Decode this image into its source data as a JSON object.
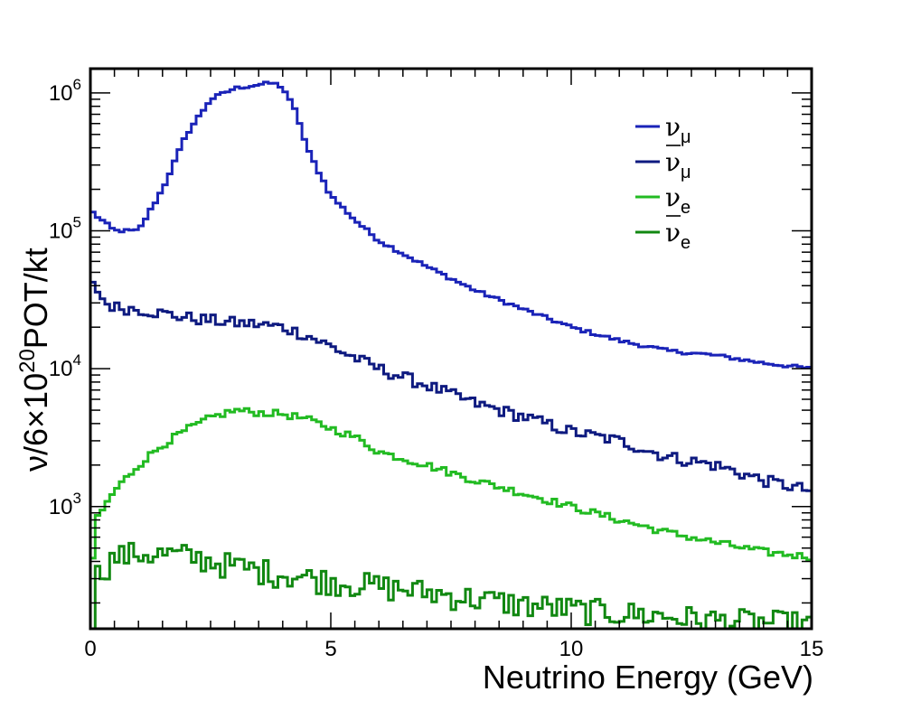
{
  "chart_data": {
    "type": "line",
    "style": "step histogram",
    "xlabel": "Neutrino Energy (GeV)",
    "ylabel": "ν/6×10²⁰POT/kt",
    "ylabel_parts": {
      "pre": "ν/6×10",
      "sup": "20",
      "post": "POT/kt"
    },
    "xlim": [
      0,
      15
    ],
    "ylim": [
      130,
      1500000
    ],
    "yscale": "log",
    "grid": false,
    "legend_position": "top-right",
    "x_ticks": [
      {
        "value": 0,
        "label": "0"
      },
      {
        "value": 5,
        "label": "5"
      },
      {
        "value": 10,
        "label": "10"
      },
      {
        "value": 15,
        "label": "15"
      }
    ],
    "y_ticks": [
      {
        "value": 1000,
        "base": "10",
        "exp": "3"
      },
      {
        "value": 10000,
        "base": "10",
        "exp": "4"
      },
      {
        "value": 100000,
        "base": "10",
        "exp": "5"
      },
      {
        "value": 1000000,
        "base": "10",
        "exp": "6"
      }
    ],
    "bin_width": 0.1,
    "series": [
      {
        "name": "ν_μ",
        "label_base": "ν",
        "label_sub": "μ",
        "bar": false,
        "color": "#1a23b8",
        "points": [
          [
            0,
            140000
          ],
          [
            0.5,
            100000
          ],
          [
            1,
            100000
          ],
          [
            1.5,
            200000
          ],
          [
            2,
            500000
          ],
          [
            2.5,
            900000
          ],
          [
            3,
            1080000
          ],
          [
            3.5,
            1150000
          ],
          [
            3.8,
            1180000
          ],
          [
            4,
            1100000
          ],
          [
            4.3,
            700000
          ],
          [
            4.5,
            400000
          ],
          [
            5,
            180000
          ],
          [
            5.5,
            120000
          ],
          [
            6,
            85000
          ],
          [
            7,
            55000
          ],
          [
            8,
            37000
          ],
          [
            9,
            27000
          ],
          [
            10,
            20000
          ],
          [
            11,
            16000
          ],
          [
            12,
            13500
          ],
          [
            13,
            12500
          ],
          [
            14,
            11000
          ],
          [
            15,
            10000
          ]
        ]
      },
      {
        "name": "ν̄_μ",
        "label_base": "ν",
        "label_sub": "μ",
        "bar": true,
        "color": "#0e1a80",
        "points": [
          [
            0.1,
            40000
          ],
          [
            0.3,
            30000
          ],
          [
            0.5,
            28000
          ],
          [
            1,
            27000
          ],
          [
            2,
            23500
          ],
          [
            3,
            21500
          ],
          [
            3.5,
            21000
          ],
          [
            4,
            20000
          ],
          [
            4.5,
            17500
          ],
          [
            5,
            14500
          ],
          [
            5.5,
            12000
          ],
          [
            6,
            10000
          ],
          [
            7,
            7600
          ],
          [
            8,
            5600
          ],
          [
            9,
            4500
          ],
          [
            10,
            3500
          ],
          [
            11,
            3000
          ],
          [
            12,
            2300
          ],
          [
            13,
            2000
          ],
          [
            14,
            1550
          ],
          [
            15,
            1300
          ]
        ]
      },
      {
        "name": "ν_e",
        "label_base": "ν",
        "label_sub": "e",
        "bar": false,
        "color": "#22bb22",
        "points": [
          [
            0.05,
            400
          ],
          [
            0.1,
            800
          ],
          [
            0.3,
            1000
          ],
          [
            0.5,
            1300
          ],
          [
            1,
            2000
          ],
          [
            1.5,
            2800
          ],
          [
            2,
            3600
          ],
          [
            2.5,
            4400
          ],
          [
            3,
            5000
          ],
          [
            3.5,
            4800
          ],
          [
            4,
            4700
          ],
          [
            4.5,
            4300
          ],
          [
            5,
            3700
          ],
          [
            5.5,
            3200
          ],
          [
            6,
            2500
          ],
          [
            7,
            2000
          ],
          [
            8,
            1550
          ],
          [
            9,
            1250
          ],
          [
            10,
            1000
          ],
          [
            11,
            800
          ],
          [
            12,
            650
          ],
          [
            13,
            550
          ],
          [
            14,
            470
          ],
          [
            15,
            430
          ]
        ]
      },
      {
        "name": "ν̄_e",
        "label_base": "ν",
        "label_sub": "e",
        "bar": true,
        "color": "#118811",
        "points": [
          [
            0.05,
            140
          ],
          [
            0.1,
            310
          ],
          [
            0.5,
            430
          ],
          [
            1,
            460
          ],
          [
            2,
            440
          ],
          [
            3,
            370
          ],
          [
            4,
            325
          ],
          [
            5,
            290
          ],
          [
            6,
            265
          ],
          [
            7,
            240
          ],
          [
            8,
            215
          ],
          [
            9,
            195
          ],
          [
            10,
            180
          ],
          [
            11,
            170
          ],
          [
            12,
            160
          ],
          [
            13,
            150
          ],
          [
            14,
            145
          ],
          [
            15,
            140
          ]
        ]
      }
    ]
  }
}
